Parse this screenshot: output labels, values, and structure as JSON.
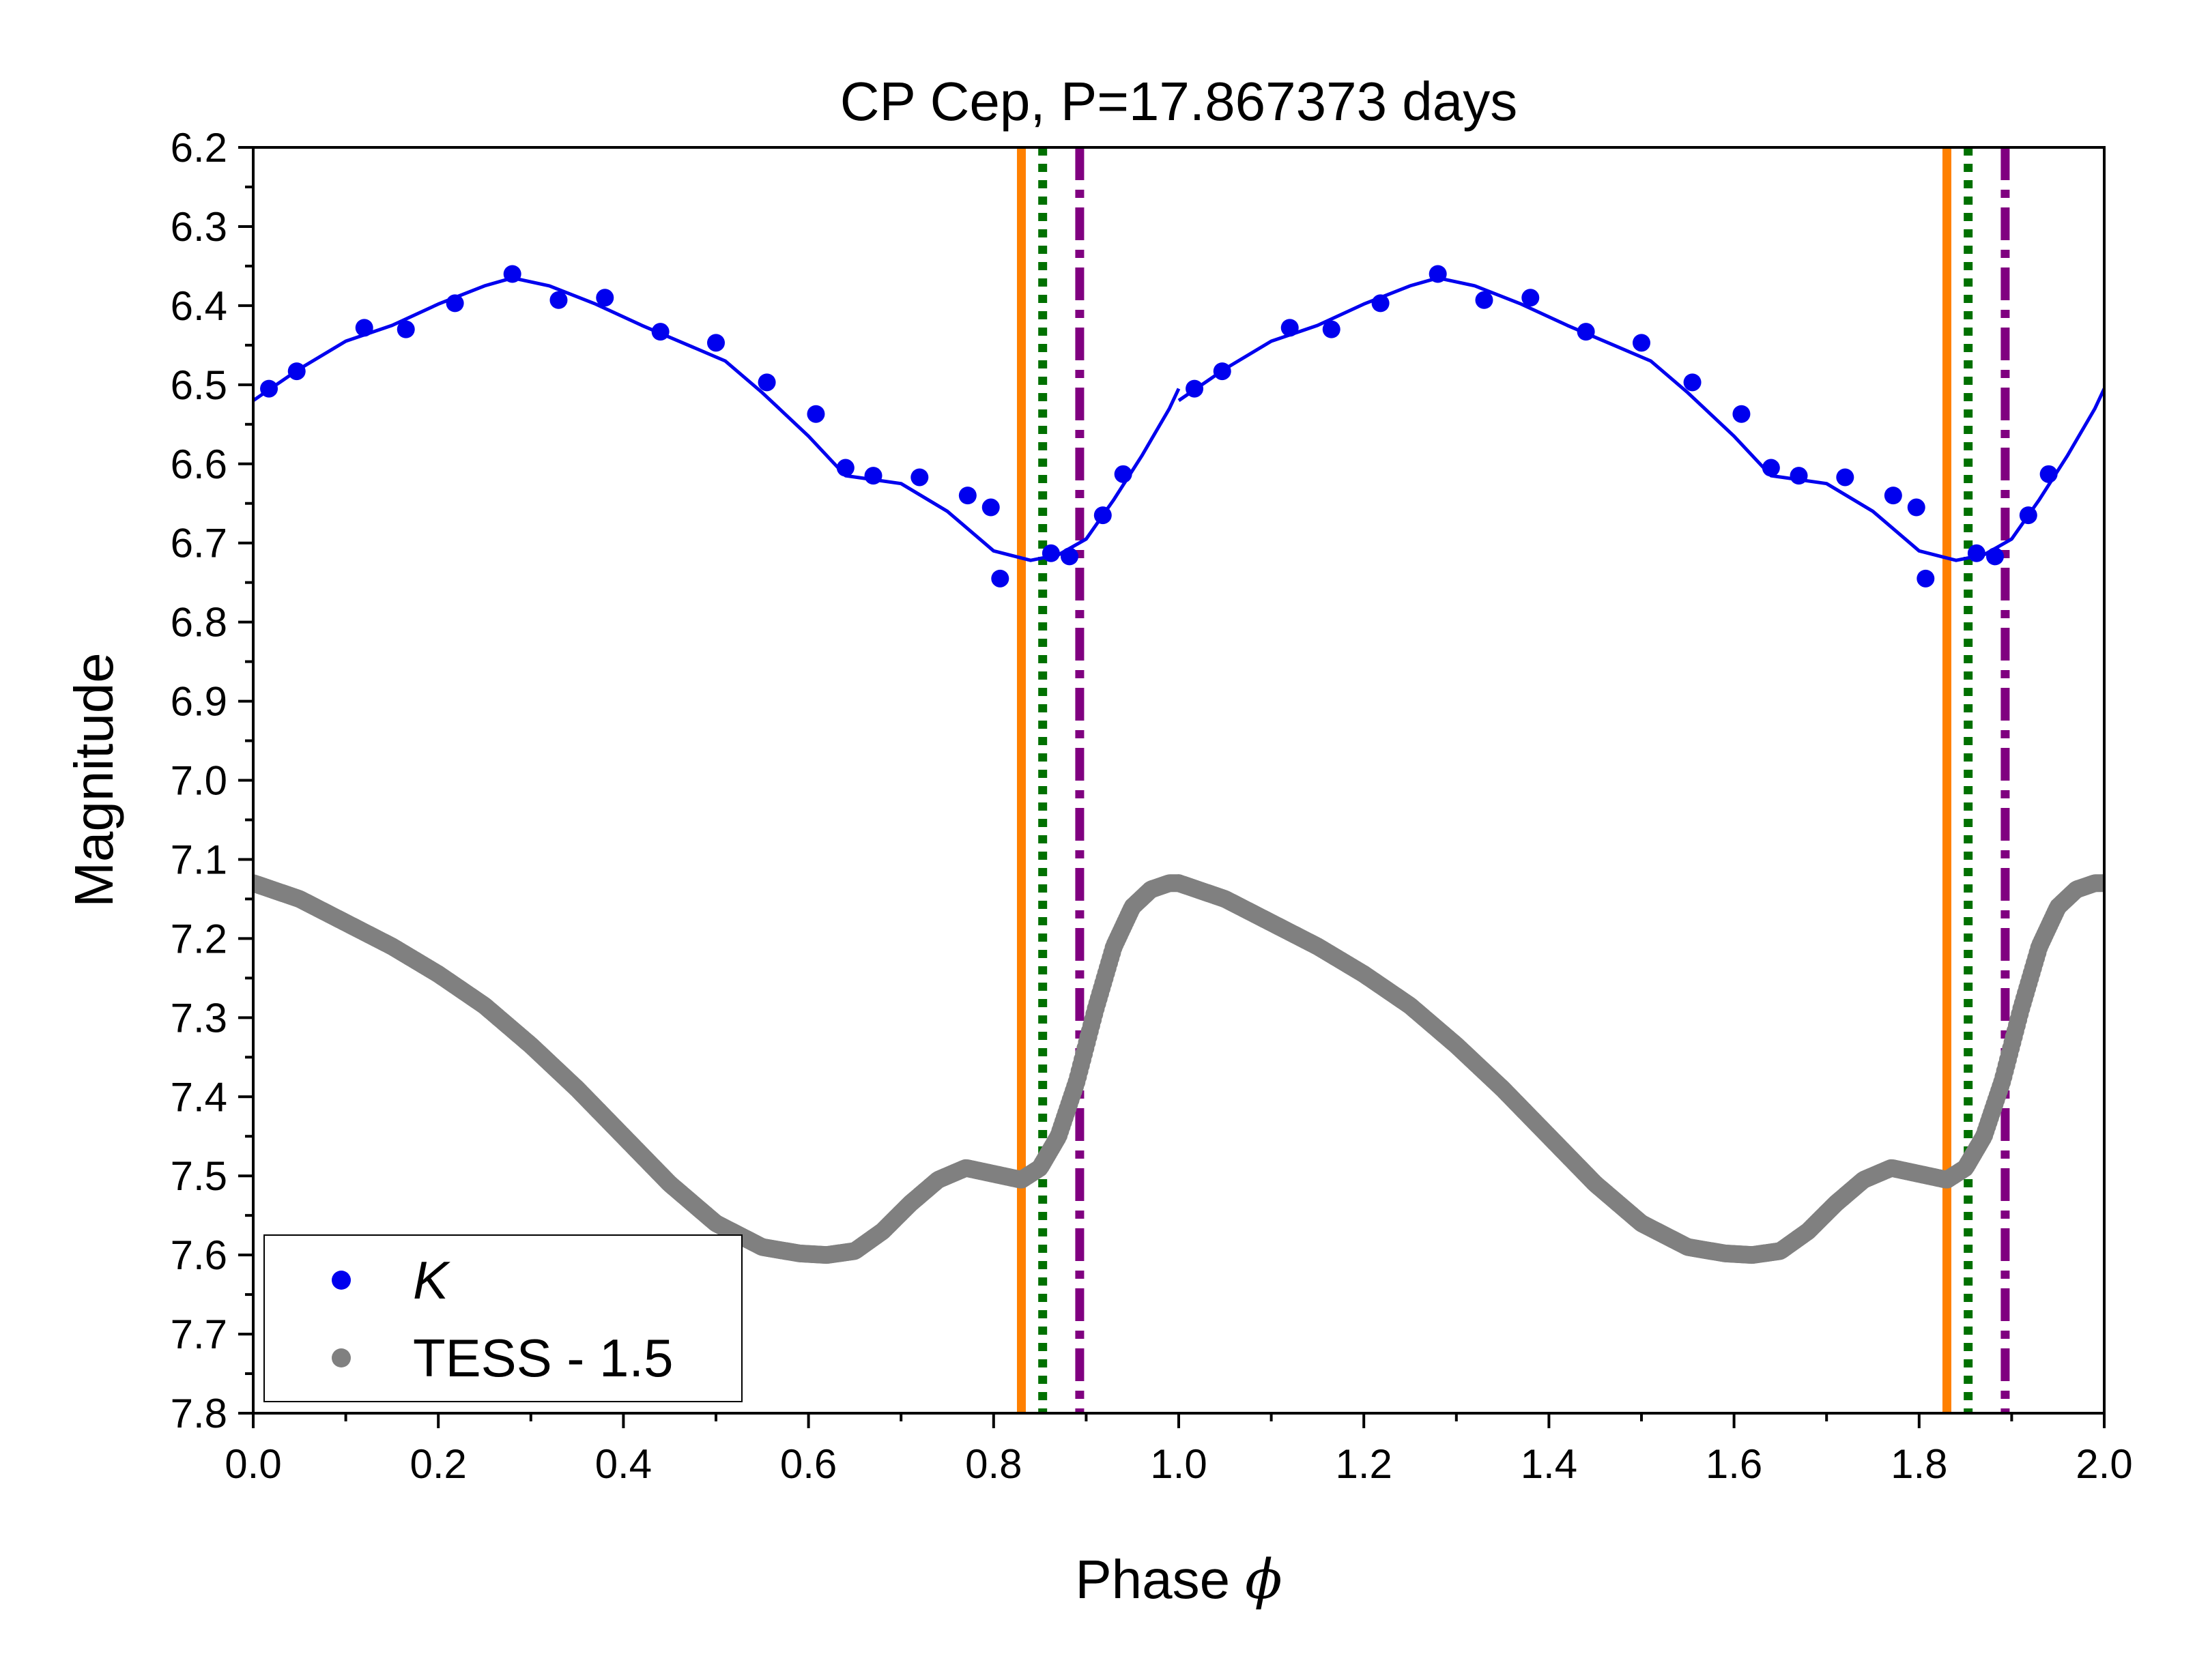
{
  "chart_data": {
    "type": "scatter",
    "title": "CP Cep, P=17.867373 days",
    "xlabel": "Phase",
    "xlabel_symbol": "ϕ",
    "ylabel": "Magnitude",
    "xlim": [
      0.0,
      2.0
    ],
    "ylim": [
      6.2,
      7.8
    ],
    "y_inverted": true,
    "x_ticks": [
      "0.0",
      "0.2",
      "0.4",
      "0.6",
      "0.8",
      "1.0",
      "1.2",
      "1.4",
      "1.6",
      "1.8",
      "2.0"
    ],
    "y_ticks": [
      "6.2",
      "6.3",
      "6.4",
      "6.5",
      "6.6",
      "6.7",
      "6.8",
      "6.9",
      "7.0",
      "7.1",
      "7.2",
      "7.3",
      "7.4",
      "7.5",
      "7.6",
      "7.7",
      "7.8"
    ],
    "legend": [
      {
        "label": "K",
        "italic": true,
        "color": "#0000ee",
        "marker": "circle"
      },
      {
        "label": "TESS - 1.5",
        "italic": false,
        "color": "#808080",
        "marker": "circle"
      }
    ],
    "legend_position": "bottom-left",
    "series": [
      {
        "name": "K",
        "kind": "points",
        "color": "#0000ee",
        "x": [
          0.017,
          0.047,
          0.12,
          0.165,
          0.218,
          0.28,
          0.33,
          0.38,
          0.44,
          0.5,
          0.555,
          0.608,
          0.64,
          0.67,
          0.72,
          0.772,
          0.797,
          0.807,
          0.862,
          0.882,
          0.918,
          0.94
        ],
        "y": [
          6.505,
          6.483,
          6.428,
          6.43,
          6.397,
          6.36,
          6.393,
          6.39,
          6.433,
          6.447,
          6.497,
          6.537,
          6.605,
          6.615,
          6.617,
          6.64,
          6.655,
          6.745,
          6.713,
          6.717,
          6.665,
          6.613
        ]
      },
      {
        "name": "K fit",
        "kind": "line",
        "color": "#0000ee",
        "x": [
          0.0,
          0.05,
          0.1,
          0.15,
          0.2,
          0.25,
          0.28,
          0.32,
          0.37,
          0.42,
          0.47,
          0.51,
          0.55,
          0.6,
          0.64,
          0.7,
          0.75,
          0.8,
          0.84,
          0.87,
          0.9,
          0.93,
          0.96,
          0.99,
          1.0
        ],
        "y": [
          6.52,
          6.48,
          6.445,
          6.425,
          6.398,
          6.375,
          6.365,
          6.375,
          6.398,
          6.425,
          6.45,
          6.47,
          6.51,
          6.565,
          6.615,
          6.625,
          6.66,
          6.71,
          6.722,
          6.715,
          6.695,
          6.645,
          6.59,
          6.53,
          6.505
        ]
      },
      {
        "name": "TESS - 1.5",
        "kind": "dense-points",
        "color": "#808080",
        "x": [
          0.0,
          0.05,
          0.1,
          0.15,
          0.2,
          0.25,
          0.3,
          0.35,
          0.4,
          0.45,
          0.5,
          0.55,
          0.59,
          0.62,
          0.65,
          0.68,
          0.71,
          0.74,
          0.77,
          0.79,
          0.81,
          0.83,
          0.85,
          0.87,
          0.89,
          0.91,
          0.93,
          0.95,
          0.97,
          0.99,
          1.0
        ],
        "y": [
          7.13,
          7.15,
          7.18,
          7.21,
          7.245,
          7.285,
          7.335,
          7.39,
          7.45,
          7.51,
          7.56,
          7.59,
          7.598,
          7.6,
          7.595,
          7.57,
          7.535,
          7.505,
          7.49,
          7.495,
          7.5,
          7.505,
          7.49,
          7.45,
          7.38,
          7.29,
          7.21,
          7.16,
          7.138,
          7.13,
          7.13
        ]
      }
    ],
    "vertical_lines": [
      {
        "x": 0.83,
        "style": "solid",
        "color": "#ff8000"
      },
      {
        "x": 0.853,
        "style": "dotted",
        "color": "#007000"
      },
      {
        "x": 0.893,
        "style": "dashdot",
        "color": "#800080"
      },
      {
        "x": 1.83,
        "style": "solid",
        "color": "#ff8000"
      },
      {
        "x": 1.853,
        "style": "dotted",
        "color": "#007000"
      },
      {
        "x": 1.893,
        "style": "dashdot",
        "color": "#800080"
      }
    ],
    "phase_repeat": 1.0
  }
}
